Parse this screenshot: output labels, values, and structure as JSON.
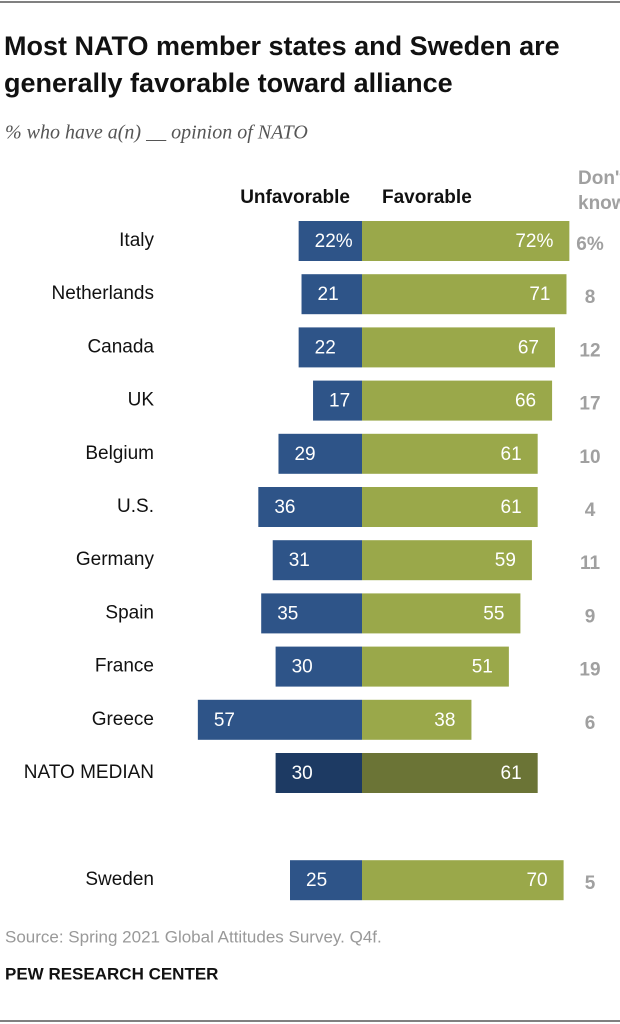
{
  "chart_data": {
    "type": "diverging_bar",
    "title": "Most NATO member states and Sweden are generally favorable toward alliance",
    "subtitle": "% who have a(n) __ opinion of NATO",
    "categories": [
      "Italy",
      "Netherlands",
      "Canada",
      "UK",
      "Belgium",
      "U.S.",
      "Germany",
      "Spain",
      "France",
      "Greece",
      "NATO MEDIAN",
      "Sweden"
    ],
    "series": [
      {
        "name": "Unfavorable",
        "color": "#2e5488",
        "highlight_color": "#1d3a63",
        "values": [
          22,
          21,
          22,
          17,
          29,
          36,
          31,
          35,
          30,
          57,
          30,
          25
        ],
        "value_labels": [
          "22%",
          "21",
          "22",
          "17",
          "29",
          "36",
          "31",
          "35",
          "30",
          "57",
          "30",
          "25"
        ]
      },
      {
        "name": "Favorable",
        "color": "#9aa84a",
        "highlight_color": "#6b7436",
        "values": [
          72,
          71,
          67,
          66,
          61,
          61,
          59,
          55,
          51,
          38,
          61,
          70
        ],
        "value_labels": [
          "72%",
          "71",
          "67",
          "66",
          "61",
          "61",
          "59",
          "55",
          "51",
          "38",
          "61",
          "70"
        ]
      },
      {
        "name": "Don't know",
        "color": "#a0a0a0",
        "values": [
          6,
          8,
          12,
          17,
          10,
          4,
          11,
          9,
          19,
          6,
          null,
          5
        ],
        "value_labels": [
          "6%",
          "8",
          "12",
          "17",
          "10",
          "4",
          "11",
          "9",
          "19",
          "6",
          null,
          "5"
        ]
      }
    ],
    "highlight_index": 10,
    "source": "Source: Spring 2021 Global Attitudes Survey. Q4f.",
    "footer": "PEW RESEARCH CENTER"
  }
}
